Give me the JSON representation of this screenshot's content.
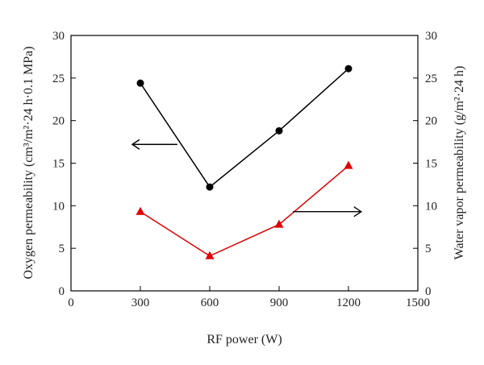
{
  "chart_data": {
    "type": "line",
    "xlabel": "RF power (W)",
    "ylabel_left": "Oxygen permeability (cm³/m²·24 h·0.1 MPa)",
    "ylabel_right": "Water vapor permeability (g/m²·24 h)",
    "xlim": [
      0,
      1500
    ],
    "ylim_left": [
      0,
      30
    ],
    "ylim_right": [
      0,
      30
    ],
    "xticks": [
      0,
      300,
      600,
      900,
      1200,
      1500
    ],
    "yticks": [
      0,
      5,
      10,
      15,
      20,
      25,
      30
    ],
    "grid": false,
    "series": [
      {
        "axis": "left",
        "marker": "circle",
        "color": "#000000",
        "x": [
          300,
          600,
          900,
          1200
        ],
        "values": [
          24.4,
          12.2,
          18.8,
          26.1
        ]
      },
      {
        "axis": "right",
        "marker": "triangle",
        "color": "#e00000",
        "x": [
          300,
          600,
          900,
          1200
        ],
        "values": [
          9.3,
          4.1,
          7.8,
          14.7
        ]
      }
    ],
    "annotations": [
      {
        "type": "arrow",
        "direction": "left",
        "points_to": "left-axis",
        "color": "#000000"
      },
      {
        "type": "arrow",
        "direction": "right",
        "points_to": "right-axis",
        "color": "#000000"
      }
    ]
  }
}
